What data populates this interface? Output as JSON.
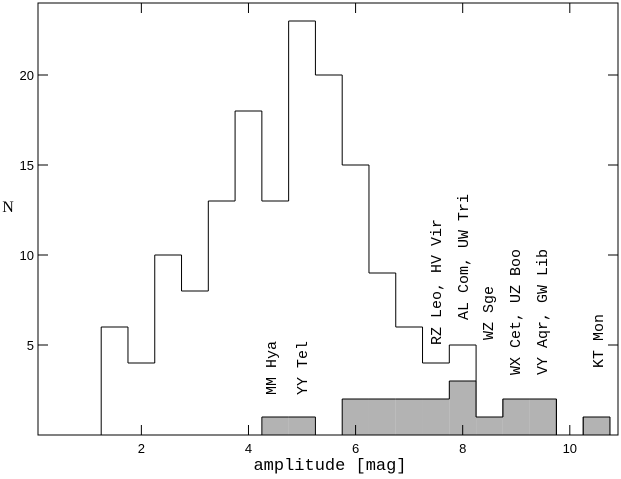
{
  "chart_data": {
    "type": "histogram",
    "xlabel": "amplitude [mag]",
    "ylabel": "N",
    "bins": [
      1.25,
      1.75,
      2.25,
      2.75,
      3.25,
      3.75,
      4.25,
      4.75,
      5.25,
      5.75,
      6.25,
      6.75,
      7.25,
      7.75,
      8.25,
      8.75,
      9.25,
      9.75,
      10.25,
      10.75
    ],
    "series": [
      {
        "color": "none",
        "values": [
          6,
          4,
          10,
          8,
          13,
          18,
          13,
          23,
          20,
          15,
          9,
          6,
          4,
          5,
          1,
          2,
          2,
          0,
          1
        ]
      },
      {
        "color": "#b3b3b3",
        "values": [
          0,
          0,
          0,
          0,
          0,
          0,
          1,
          1,
          0,
          2,
          2,
          2,
          2,
          3,
          1,
          2,
          2,
          0,
          1
        ]
      }
    ],
    "annotations": [
      "MM Hya",
      "YY Tel",
      "RZ Leo, HV Vir",
      "AL Com, UW Tri",
      "WZ Sge",
      "WX Cet, UZ Boo",
      "VY Aqr, GW Lib",
      "KT Mon"
    ],
    "xlim": [
      0.07,
      10.9
    ],
    "ylim": [
      0,
      24
    ],
    "xticks": [
      2,
      4,
      6,
      8,
      10
    ],
    "yticks": [
      5,
      10,
      15,
      20
    ]
  }
}
